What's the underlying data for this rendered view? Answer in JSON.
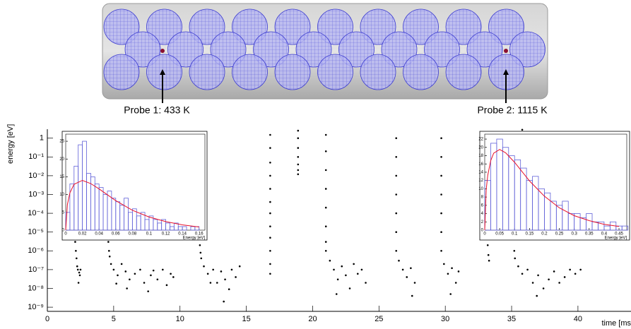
{
  "chart_data": [
    {
      "type": "scatter",
      "annotations": [
        "Probe 1: 433 K",
        "Probe 2: 1115 K"
      ],
      "x_label": "time [ms",
      "y_label": "energy [eV]",
      "color": "#000000",
      "ylog": true,
      "xlim": [
        0,
        44
      ],
      "ylim": [
        6e-10,
        3
      ],
      "xticks": [
        0,
        5,
        10,
        15,
        20,
        25,
        30,
        35,
        40
      ],
      "yticks": [
        {
          "value": 1e-09,
          "label": "10⁻⁹"
        },
        {
          "value": 1e-08,
          "label": "10⁻⁸"
        },
        {
          "value": 1e-07,
          "label": "10⁻⁷"
        },
        {
          "value": 1e-06,
          "label": "10⁻⁶"
        },
        {
          "value": 1e-05,
          "label": "10⁻⁵"
        },
        {
          "value": 0.0001,
          "label": "10⁻⁴"
        },
        {
          "value": 0.001,
          "label": "10⁻³"
        },
        {
          "value": 0.01,
          "label": "10⁻²"
        },
        {
          "value": 0.1,
          "label": "10⁻¹"
        },
        1
      ],
      "x": [
        2.1,
        2.15,
        2.2,
        2.25,
        2.3,
        2.4,
        2.35,
        2.5,
        2.45,
        4.6,
        4.65,
        4.7,
        4.8,
        5.0,
        5.3,
        5.6,
        5.9,
        6.2,
        6.0,
        6.6,
        7.0,
        7.3,
        7.6,
        8.0,
        8.3,
        8.7,
        9.0,
        9.3,
        9.5,
        5.2,
        7.8,
        11.5,
        11.55,
        11.6,
        11.8,
        12.1,
        12.5,
        12.8,
        13.1,
        13.4,
        13.7,
        13.9,
        14.2,
        14.5,
        13.3,
        12.3,
        16.8,
        16.8,
        16.8,
        16.8,
        16.8,
        16.8,
        16.8,
        16.8,
        16.8,
        16.8,
        16.8,
        16.8,
        18.9,
        18.9,
        18.9,
        18.9,
        18.9,
        18.9,
        18.9,
        21.0,
        21.0,
        21.0,
        21.0,
        21.0,
        21.0,
        21.0,
        21.0,
        21.3,
        21.6,
        21.9,
        22.2,
        22.5,
        22.8,
        23.1,
        23.4,
        23.7,
        24.0,
        21.8,
        26.3,
        26.3,
        26.3,
        26.3,
        26.3,
        26.3,
        26.3,
        26.5,
        26.8,
        27.1,
        27.4,
        27.7,
        27.5,
        29.7,
        29.7,
        29.7,
        29.7,
        29.7,
        29.7,
        29.7,
        29.9,
        30.2,
        30.5,
        30.8,
        31.0,
        30.4,
        33.2,
        33.25,
        33.3,
        35.2,
        35.25,
        35.5,
        35.8,
        36.2,
        36.6,
        37.0,
        37.4,
        37.8,
        38.2,
        38.6,
        39.0,
        39.4,
        39.8,
        40.2,
        36.9,
        35.8
      ],
      "values": [
        3e-06,
        1e-06,
        4e-07,
        1.5e-07,
        1e-07,
        7e-08,
        2e-08,
        1e-07,
        5e-08,
        3e-06,
        1e-06,
        5e-07,
        2e-07,
        1e-07,
        5e-08,
        2e-07,
        8e-08,
        3e-08,
        1e-08,
        6e-08,
        1e-07,
        2e-08,
        7e-09,
        9e-08,
        3e-08,
        1e-07,
        1.5e-08,
        6e-08,
        4e-08,
        1.8e-08,
        5e-08,
        2e-06,
        8e-07,
        4e-07,
        1.5e-07,
        6e-08,
        1e-07,
        2e-08,
        8e-08,
        3e-08,
        9e-09,
        1e-07,
        4e-08,
        1.5e-07,
        2e-09,
        2e-08,
        1.5,
        0.3,
        0.05,
        0.01,
        0.002,
        0.0004,
        0.0001,
        2e-05,
        5e-06,
        1e-06,
        2e-07,
        6e-08,
        2.5,
        1,
        0.3,
        0.1,
        0.04,
        0.02,
        0.012,
        1.5,
        0.2,
        0.02,
        0.002,
        0.0002,
        2e-05,
        3e-06,
        1e-06,
        3e-07,
        1e-07,
        3e-08,
        1.5e-07,
        5e-08,
        1e-08,
        2e-07,
        6e-08,
        1e-07,
        2e-08,
        5e-09,
        1,
        0.1,
        0.01,
        0.001,
        0.0001,
        1e-05,
        1e-06,
        3e-07,
        1e-07,
        4e-08,
        1.2e-07,
        2e-08,
        4e-09,
        1,
        0.1,
        0.01,
        0.001,
        0.0001,
        1e-05,
        1e-06,
        2e-07,
        6e-08,
        1.2e-07,
        2e-08,
        8e-08,
        5e-09,
        2e-06,
        6e-07,
        3e-07,
        1e-06,
        4e-07,
        1.5e-07,
        6e-08,
        1e-07,
        2e-08,
        5e-08,
        1e-08,
        3e-08,
        8e-08,
        2e-08,
        4e-08,
        1e-07,
        6e-08,
        1e-07,
        4e-09,
        2.8
      ]
    },
    {
      "type": "histogram",
      "x_label": "Energy [eV]",
      "color": "#6060d8",
      "xlim": [
        0,
        0.167
      ],
      "ylim": [
        0,
        27
      ],
      "xticks": [
        0,
        0.02,
        0.04,
        0.06,
        0.08,
        0.1,
        0.12,
        0.14,
        0.16
      ],
      "yticks": [
        0,
        5,
        10,
        15,
        20,
        25
      ],
      "bins": [
        0,
        0.005,
        0.01,
        0.015,
        0.02,
        0.025,
        0.03,
        0.035,
        0.04,
        0.045,
        0.05,
        0.055,
        0.06,
        0.065,
        0.07,
        0.075,
        0.08,
        0.085,
        0.09,
        0.095,
        0.1,
        0.105,
        0.11,
        0.115,
        0.12,
        0.125,
        0.13,
        0.135,
        0.14,
        0.145,
        0.15,
        0.155,
        0.16,
        0.165
      ],
      "values": [
        5,
        13,
        18,
        24,
        25,
        16,
        15,
        13,
        12,
        10,
        11,
        9,
        8,
        7,
        9,
        5,
        6,
        4,
        5,
        3,
        4,
        3,
        2,
        3,
        2,
        1,
        2,
        1,
        1,
        0,
        1,
        1,
        0
      ],
      "fit": {
        "color": "#e8102a",
        "x": [
          0,
          0.002,
          0.005,
          0.01,
          0.02,
          0.03,
          0.04,
          0.06,
          0.08,
          0.1,
          0.12,
          0.14,
          0.16
        ],
        "values": [
          0,
          7.2,
          10.5,
          12.9,
          14,
          13.1,
          11.6,
          8.3,
          5.6,
          3.7,
          2.4,
          1.5,
          0.9
        ]
      }
    },
    {
      "type": "histogram",
      "x_label": "Energy [eV]",
      "color": "#6060d8",
      "xlim": [
        0,
        0.476
      ],
      "ylim": [
        0,
        23.2
      ],
      "xticks": [
        0,
        0.05,
        0.1,
        0.15,
        0.2,
        0.25,
        0.3,
        0.35,
        0.4,
        0.45
      ],
      "yticks": [
        0,
        2,
        4,
        6,
        8,
        10,
        12,
        14,
        16,
        18,
        20,
        22
      ],
      "bins": [
        0,
        0.02,
        0.04,
        0.06,
        0.08,
        0.1,
        0.12,
        0.14,
        0.16,
        0.18,
        0.2,
        0.22,
        0.24,
        0.26,
        0.28,
        0.3,
        0.32,
        0.34,
        0.36,
        0.38,
        0.4,
        0.42,
        0.44,
        0.46,
        0.48
      ],
      "values": [
        12,
        21,
        22,
        20,
        18,
        17,
        15,
        12,
        13,
        10,
        9,
        7,
        6,
        7,
        4,
        4,
        3,
        4,
        2,
        2,
        1,
        2,
        1,
        1
      ],
      "fit": {
        "color": "#e8102a",
        "x": [
          0,
          0.005,
          0.01,
          0.02,
          0.03,
          0.05,
          0.07,
          0.1,
          0.15,
          0.2,
          0.25,
          0.3,
          0.35,
          0.4,
          0.45
        ],
        "values": [
          0,
          9.85,
          13.2,
          16.8,
          18.6,
          19.5,
          18.7,
          16.4,
          11.9,
          8.2,
          5.4,
          3.5,
          2.3,
          1.4,
          0.9
        ]
      }
    }
  ]
}
